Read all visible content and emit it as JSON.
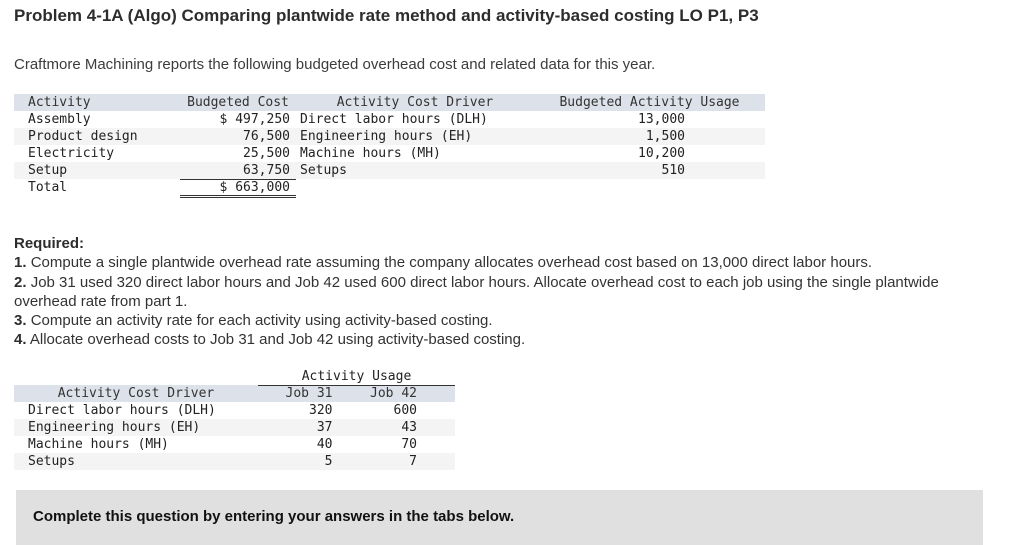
{
  "page": {
    "title": "Problem 4-1A (Algo) Comparing plantwide rate method and activity-based costing LO P1, P3",
    "intro": "Craftmore Machining reports the following budgeted overhead cost and related data for this year."
  },
  "overhead_table": {
    "headers": [
      "Activity",
      "Budgeted Cost",
      "Activity Cost Driver",
      "Budgeted Activity Usage"
    ],
    "rows": [
      {
        "activity": "Assembly",
        "cost": "$ 497,250",
        "driver": "Direct labor hours (DLH)",
        "usage": "13,000"
      },
      {
        "activity": "Product design",
        "cost": "76,500",
        "driver": "Engineering hours (EH)",
        "usage": "1,500"
      },
      {
        "activity": "Electricity",
        "cost": "25,500",
        "driver": "Machine hours (MH)",
        "usage": "10,200"
      },
      {
        "activity": "Setup",
        "cost": "63,750",
        "driver": "Setups",
        "usage": "510"
      }
    ],
    "total_label": "Total",
    "total_cost": "$ 663,000"
  },
  "required": {
    "label": "Required:",
    "items": [
      {
        "num": "1.",
        "text": "Compute a single plantwide overhead rate assuming the company allocates overhead cost based on 13,000 direct labor hours."
      },
      {
        "num": "2.",
        "text": "Job 31 used 320 direct labor hours and Job 42 used 600 direct labor hours. Allocate overhead cost to each job using the single plantwide overhead rate from part 1."
      },
      {
        "num": "3.",
        "text": "Compute an activity rate for each activity using activity-based costing."
      },
      {
        "num": "4.",
        "text": "Allocate overhead costs to Job 31 and Job 42 using activity-based costing."
      }
    ]
  },
  "usage_table": {
    "group_header": "Activity Usage",
    "col_headers": [
      "Activity Cost Driver",
      "Job 31",
      "Job 42"
    ],
    "rows": [
      {
        "driver": "Direct labor hours (DLH)",
        "job31": "320",
        "job42": "600"
      },
      {
        "driver": "Engineering hours (EH)",
        "job31": "37",
        "job42": "43"
      },
      {
        "driver": "Machine hours (MH)",
        "job31": "40",
        "job42": "70"
      },
      {
        "driver": "Setups",
        "job31": "5",
        "job42": "7"
      }
    ]
  },
  "footer": {
    "instruction": "Complete this question by entering your answers in the tabs below."
  },
  "colors": {
    "table_header_bg": "#dde1e9",
    "table_alt_row_bg": "#f4f4f5",
    "footer_box_bg": "#e0e0e0"
  }
}
